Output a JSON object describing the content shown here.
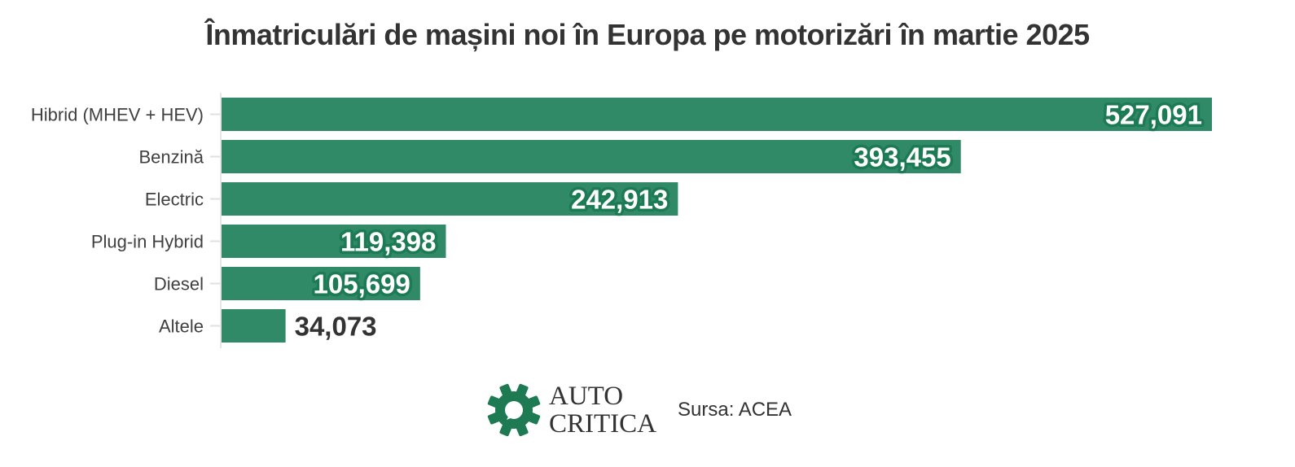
{
  "colors": {
    "bar": "#318A67",
    "label_outline": "#1C7A55",
    "label_inside": "#ffffff",
    "label_outside": "#333333",
    "logo": "#1E7A53"
  },
  "chart_data": {
    "type": "bar",
    "orientation": "horizontal",
    "title": "Înmatriculări de mașini noi în Europa pe motorizări în martie 2025",
    "categories": [
      "Hibrid (MHEV + HEV)",
      "Benzină",
      "Electric",
      "Plug-in Hybrid",
      "Diesel",
      "Altele"
    ],
    "values": [
      527091,
      393455,
      242913,
      119398,
      105699,
      34073
    ],
    "value_labels": [
      "527,091",
      "393,455",
      "242,913",
      "119,398",
      "105,699",
      "34,073"
    ],
    "xlim": [
      0,
      527091
    ],
    "grid": false,
    "legend": "none"
  },
  "footer": {
    "logo_name": "gear-icon",
    "logo_line1": "AUTO",
    "logo_line2": "CRITICA",
    "source": "Sursa: ACEA"
  }
}
